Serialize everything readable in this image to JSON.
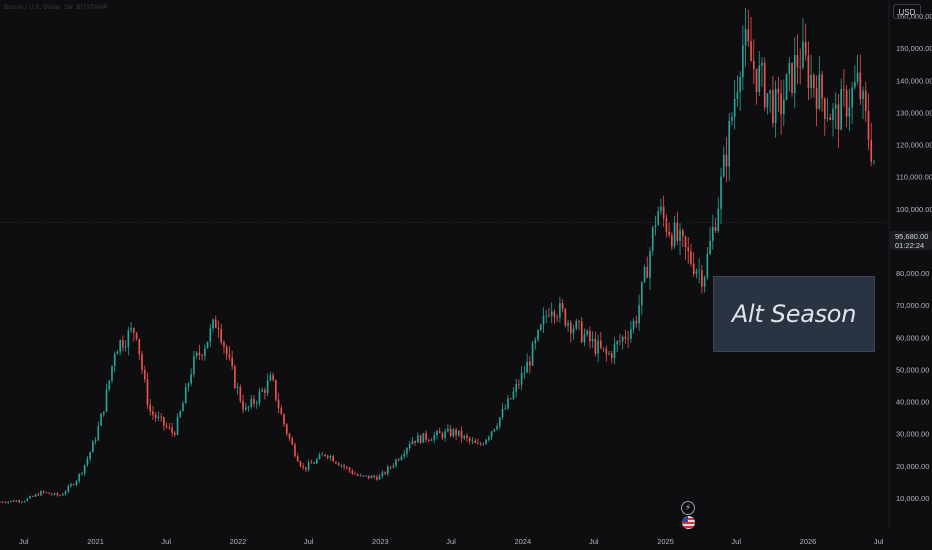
{
  "legend": "Bitcoin / U.S. Dollar, 1W, BITSTAMP",
  "currency": "USD",
  "current_price": "95,680.00",
  "countdown": "01:22:24",
  "annotation": "Alt Season",
  "icons": [
    "flash-icon",
    "us-flag-icon"
  ],
  "colors": {
    "up": "#26a69a",
    "down": "#ef5350",
    "background": "#0e0e10",
    "box": "#2a3342"
  },
  "chart_data": {
    "type": "candlestick",
    "x_range": [
      "2020-05-01",
      "2026-07-25"
    ],
    "ylim": [
      0,
      165000
    ],
    "yticks": [
      10000,
      20000,
      30000,
      40000,
      50000,
      60000,
      70000,
      80000,
      90000,
      100000,
      110000,
      120000,
      130000,
      140000,
      150000,
      160000
    ],
    "ytick_labels": [
      "10,000.00",
      "20,000.00",
      "30,000.00",
      "40,000.00",
      "50,000.00",
      "60,000.00",
      "70,000.00",
      "80,000.00",
      "90,000.00",
      "100,000.00",
      "110,000.00",
      "120,000.00",
      "130,000.00",
      "140,000.00",
      "150,000.00",
      "160,000.00"
    ],
    "xticks": [
      {
        "label": "Jul",
        "date": "2020-07-01"
      },
      {
        "label": "2021",
        "date": "2021-01-01"
      },
      {
        "label": "Jul",
        "date": "2021-07-01"
      },
      {
        "label": "2022",
        "date": "2022-01-01"
      },
      {
        "label": "Jul",
        "date": "2022-07-01"
      },
      {
        "label": "2023",
        "date": "2023-01-01"
      },
      {
        "label": "Jul",
        "date": "2023-07-01"
      },
      {
        "label": "2024",
        "date": "2024-01-01"
      },
      {
        "label": "Jul",
        "date": "2024-07-01"
      },
      {
        "label": "2025",
        "date": "2025-01-01"
      },
      {
        "label": "Jul",
        "date": "2025-07-01"
      },
      {
        "label": "2026",
        "date": "2026-01-01"
      },
      {
        "label": "Jul",
        "date": "2026-07-01"
      }
    ],
    "grid": false,
    "annotation_box": {
      "label": "Alt Season",
      "x_start": "2025-04-15",
      "x_end": "2026-06-25",
      "y_low": 59500,
      "y_high": 82800
    },
    "series": [
      {
        "weekly_closes_keyframes": [
          {
            "date": "2020-05-01",
            "close": 8800
          },
          {
            "date": "2020-07-01",
            "close": 9200
          },
          {
            "date": "2020-08-15",
            "close": 11700
          },
          {
            "date": "2020-10-01",
            "close": 10700
          },
          {
            "date": "2020-11-15",
            "close": 16000
          },
          {
            "date": "2021-01-01",
            "close": 29000
          },
          {
            "date": "2021-02-20",
            "close": 57000
          },
          {
            "date": "2021-04-15",
            "close": 63000
          },
          {
            "date": "2021-05-20",
            "close": 37000
          },
          {
            "date": "2021-07-20",
            "close": 30000
          },
          {
            "date": "2021-09-05",
            "close": 51000
          },
          {
            "date": "2021-11-10",
            "close": 66000
          },
          {
            "date": "2022-01-20",
            "close": 37000
          },
          {
            "date": "2022-03-28",
            "close": 47000
          },
          {
            "date": "2022-06-18",
            "close": 19000
          },
          {
            "date": "2022-08-15",
            "close": 24000
          },
          {
            "date": "2022-11-10",
            "close": 16500
          },
          {
            "date": "2022-12-31",
            "close": 16500
          },
          {
            "date": "2023-03-20",
            "close": 28000
          },
          {
            "date": "2023-07-10",
            "close": 30500
          },
          {
            "date": "2023-09-10",
            "close": 26000
          },
          {
            "date": "2023-12-10",
            "close": 43000
          },
          {
            "date": "2024-03-12",
            "close": 71000
          },
          {
            "date": "2024-08-05",
            "close": 54000
          },
          {
            "date": "2024-10-15",
            "close": 65000
          },
          {
            "date": "2024-12-10",
            "close": 100000
          },
          {
            "date": "2025-04-08",
            "close": 79000
          },
          {
            "date": "2025-05-25",
            "close": 109000
          },
          {
            "date": "2025-07-15",
            "close": 152000
          },
          {
            "date": "2025-09-01",
            "close": 140000
          },
          {
            "date": "2025-10-15",
            "close": 130000
          },
          {
            "date": "2025-12-10",
            "close": 148000
          },
          {
            "date": "2026-03-10",
            "close": 128000
          },
          {
            "date": "2026-05-10",
            "close": 139000
          },
          {
            "date": "2026-06-25",
            "close": 112000
          }
        ]
      }
    ]
  }
}
